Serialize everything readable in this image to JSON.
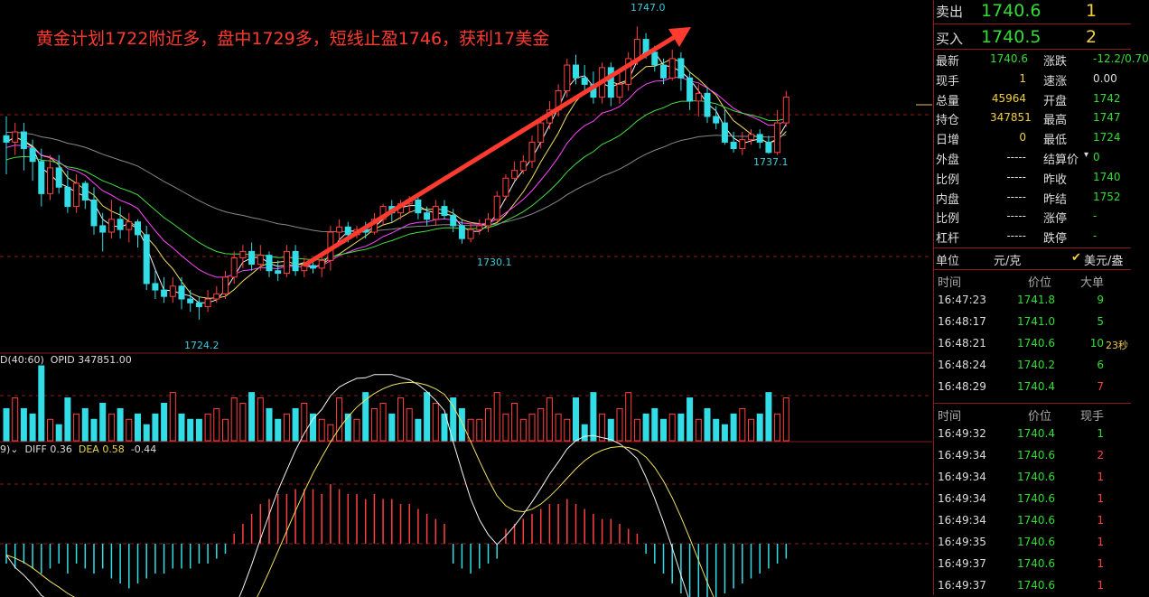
{
  "annotation": "黄金计划1722附近多，盘中1729多，短线止盈1746，获利17美金",
  "price_labels": {
    "high": "1747.0",
    "low": "1724.2",
    "mid_low": "1730.1",
    "right_low": "1737.1"
  },
  "seconds_label": "23秒",
  "volume_indicator": {
    "prefix": "D(40:60)",
    "label": "OPID 347851.00"
  },
  "macd_indicator": {
    "prefix": "9)",
    "diff": "DIFF 0.36",
    "dea": "DEA 0.58",
    "macd": "-0.44"
  },
  "quote": {
    "sell_label": "卖出",
    "sell_price": "1740.6",
    "sell_qty": "1",
    "buy_label": "买入",
    "buy_price": "1740.5",
    "buy_qty": "2",
    "stats": [
      {
        "l1": "最新",
        "v1": "1740.6",
        "l2": "涨跌",
        "v2": "-12.2/0.70"
      },
      {
        "l1": "现手",
        "v1": "1",
        "l2": "速涨",
        "v2": "0.00"
      },
      {
        "l1": "总量",
        "v1": "45964",
        "l2": "开盘",
        "v2": "1742"
      },
      {
        "l1": "持仓",
        "v1": "347851",
        "l2": "最高",
        "v2": "1747"
      },
      {
        "l1": "日增",
        "v1": "0",
        "l2": "最低",
        "v2": "1724"
      },
      {
        "l1": "外盘",
        "v1": "-----",
        "l2": "结算价",
        "v2": "0"
      },
      {
        "l1": "比例",
        "v1": "-----",
        "l2": "昨收",
        "v2": "1740"
      },
      {
        "l1": "内盘",
        "v1": "-----",
        "l2": "昨结",
        "v2": "1752"
      },
      {
        "l1": "比例",
        "v1": "-----",
        "l2": "涨停",
        "v2": "-"
      },
      {
        "l1": "杠杆",
        "v1": "-----",
        "l2": "跌停",
        "v2": "-"
      }
    ],
    "unit_label": "单位",
    "unit_value": "元/克",
    "unit_option": "美元/盎"
  },
  "big_trades": {
    "headers": [
      "时间",
      "价位",
      "大单"
    ],
    "rows": [
      {
        "time": "16:47:23",
        "price": "1741.8",
        "qty": "9"
      },
      {
        "time": "16:48:17",
        "price": "1741.0",
        "qty": "5"
      },
      {
        "time": "16:48:21",
        "price": "1740.6",
        "qty": "10"
      },
      {
        "time": "16:48:24",
        "price": "1740.2",
        "qty": "6"
      },
      {
        "time": "16:48:29",
        "price": "1740.4",
        "qty": "7"
      }
    ]
  },
  "ticks": {
    "headers": [
      "时间",
      "价位",
      "现手"
    ],
    "rows": [
      {
        "time": "16:49:32",
        "price": "1740.4",
        "qty": "1"
      },
      {
        "time": "16:49:34",
        "price": "1740.6",
        "qty": "2"
      },
      {
        "time": "16:49:34",
        "price": "1740.6",
        "qty": "1"
      },
      {
        "time": "16:49:34",
        "price": "1740.6",
        "qty": "1"
      },
      {
        "time": "16:49:34",
        "price": "1740.6",
        "qty": "1"
      },
      {
        "time": "16:49:35",
        "price": "1740.6",
        "qty": "1"
      },
      {
        "time": "16:49:37",
        "price": "1740.6",
        "qty": "1"
      },
      {
        "time": "16:49:37",
        "price": "1740.6",
        "qty": "1"
      }
    ]
  },
  "colors": {
    "up": "#ff4040",
    "down": "#33dde6",
    "arrow": "#ff3b30",
    "grid": "#8b1a1a"
  },
  "chart_data": {
    "type": "candlestick",
    "candles": [
      [
        1738.5,
        1738.0,
        1740.0,
        1735.5
      ],
      [
        1738.0,
        1738.8,
        1739.5,
        1737.0
      ],
      [
        1738.8,
        1737.5,
        1739.5,
        1735.8
      ],
      [
        1737.5,
        1736.5,
        1738.2,
        1735.0
      ],
      [
        1736.5,
        1734.0,
        1737.5,
        1733.0
      ],
      [
        1734.0,
        1736.0,
        1737.0,
        1733.5
      ],
      [
        1736.0,
        1734.5,
        1737.0,
        1734.0
      ],
      [
        1734.5,
        1733.0,
        1735.8,
        1732.5
      ],
      [
        1733.0,
        1734.8,
        1735.5,
        1732.5
      ],
      [
        1734.8,
        1733.5,
        1735.0,
        1732.8
      ],
      [
        1733.5,
        1731.5,
        1734.5,
        1730.8
      ],
      [
        1731.5,
        1731.0,
        1732.5,
        1729.5
      ],
      [
        1731.0,
        1732.0,
        1733.5,
        1730.5
      ],
      [
        1732.0,
        1731.2,
        1733.0,
        1730.5
      ],
      [
        1731.2,
        1731.8,
        1732.5,
        1730.2
      ],
      [
        1731.8,
        1730.8,
        1732.0,
        1729.8
      ],
      [
        1730.8,
        1727.0,
        1731.5,
        1726.5
      ],
      [
        1727.0,
        1726.5,
        1728.0,
        1725.8
      ],
      [
        1726.5,
        1726.0,
        1727.5,
        1725.5
      ],
      [
        1726.0,
        1726.8,
        1727.5,
        1725.5
      ],
      [
        1726.8,
        1725.8,
        1727.5,
        1725.0
      ],
      [
        1725.8,
        1725.5,
        1726.5,
        1724.8
      ],
      [
        1725.5,
        1725.2,
        1726.0,
        1724.2
      ],
      [
        1725.2,
        1725.8,
        1726.5,
        1724.8
      ],
      [
        1725.8,
        1726.2,
        1726.8,
        1725.5
      ],
      [
        1726.2,
        1727.5,
        1728.0,
        1725.8
      ],
      [
        1727.5,
        1729.0,
        1729.5,
        1727.0
      ],
      [
        1729.0,
        1729.5,
        1730.0,
        1728.2
      ],
      [
        1729.5,
        1728.5,
        1730.2,
        1728.0
      ],
      [
        1728.5,
        1729.2,
        1730.0,
        1728.0
      ],
      [
        1729.2,
        1728.0,
        1729.5,
        1727.5
      ],
      [
        1728.0,
        1727.8,
        1728.8,
        1727.2
      ],
      [
        1727.8,
        1729.5,
        1730.0,
        1727.5
      ],
      [
        1729.5,
        1728.0,
        1730.0,
        1727.6
      ],
      [
        1728.0,
        1728.4,
        1729.0,
        1727.5
      ],
      [
        1728.4,
        1728.2,
        1729.0,
        1727.8
      ],
      [
        1728.2,
        1728.8,
        1729.2,
        1727.5
      ],
      [
        1728.8,
        1731.0,
        1731.5,
        1728.0
      ],
      [
        1731.0,
        1731.4,
        1732.0,
        1730.0
      ],
      [
        1731.4,
        1730.8,
        1731.8,
        1730.2
      ],
      [
        1730.8,
        1731.2,
        1731.5,
        1730.5
      ],
      [
        1731.2,
        1731.0,
        1731.8,
        1730.5
      ],
      [
        1731.0,
        1732.0,
        1732.5,
        1730.8
      ],
      [
        1732.0,
        1733.0,
        1733.2,
        1731.5
      ],
      [
        1733.0,
        1732.5,
        1733.5,
        1731.8
      ],
      [
        1732.5,
        1733.2,
        1733.5,
        1732.0
      ],
      [
        1733.2,
        1733.5,
        1733.8,
        1732.5
      ],
      [
        1733.5,
        1732.5,
        1734.0,
        1732.0
      ],
      [
        1732.5,
        1732.0,
        1733.0,
        1731.5
      ],
      [
        1732.0,
        1733.0,
        1733.5,
        1731.5
      ],
      [
        1733.0,
        1732.3,
        1733.5,
        1732.0
      ],
      [
        1732.3,
        1731.5,
        1732.8,
        1731.0
      ],
      [
        1731.5,
        1730.5,
        1732.0,
        1730.1
      ],
      [
        1730.5,
        1731.2,
        1731.8,
        1730.2
      ],
      [
        1731.2,
        1731.5,
        1732.0,
        1730.8
      ],
      [
        1731.5,
        1732.0,
        1732.5,
        1731.0
      ],
      [
        1732.0,
        1733.8,
        1734.2,
        1731.8
      ],
      [
        1733.8,
        1735.2,
        1735.5,
        1733.5
      ],
      [
        1735.2,
        1735.8,
        1736.5,
        1735.0
      ],
      [
        1735.8,
        1736.5,
        1737.0,
        1735.5
      ],
      [
        1736.5,
        1738.0,
        1738.5,
        1736.0
      ],
      [
        1738.0,
        1739.5,
        1740.0,
        1737.5
      ],
      [
        1739.5,
        1740.5,
        1741.2,
        1739.0
      ],
      [
        1740.5,
        1742.0,
        1742.5,
        1740.0
      ],
      [
        1742.0,
        1744.0,
        1744.5,
        1741.5
      ],
      [
        1744.0,
        1743.0,
        1744.8,
        1742.5
      ],
      [
        1743.0,
        1742.5,
        1744.0,
        1742.0
      ],
      [
        1742.5,
        1741.5,
        1743.5,
        1741.0
      ],
      [
        1741.5,
        1743.8,
        1744.2,
        1741.0
      ],
      [
        1743.8,
        1741.5,
        1744.2,
        1740.8
      ],
      [
        1741.5,
        1742.5,
        1743.5,
        1741.0
      ],
      [
        1742.5,
        1744.5,
        1745.0,
        1742.0
      ],
      [
        1744.5,
        1746.0,
        1747.0,
        1744.0
      ],
      [
        1746.0,
        1745.0,
        1746.5,
        1744.5
      ],
      [
        1745.0,
        1744.0,
        1745.5,
        1743.5
      ],
      [
        1744.0,
        1743.0,
        1744.5,
        1742.5
      ],
      [
        1743.0,
        1744.5,
        1745.2,
        1742.8
      ],
      [
        1744.5,
        1743.0,
        1745.0,
        1742.0
      ],
      [
        1743.0,
        1741.2,
        1743.5,
        1740.5
      ],
      [
        1741.2,
        1741.8,
        1742.5,
        1740.0
      ],
      [
        1741.8,
        1740.0,
        1742.2,
        1739.5
      ],
      [
        1740.0,
        1739.5,
        1740.8,
        1739.0
      ],
      [
        1739.5,
        1738.0,
        1740.5,
        1737.8
      ],
      [
        1738.0,
        1737.5,
        1738.8,
        1737.2
      ],
      [
        1737.5,
        1738.2,
        1738.8,
        1737.0
      ],
      [
        1738.2,
        1738.6,
        1739.0,
        1737.8
      ],
      [
        1738.6,
        1738.0,
        1739.0,
        1737.5
      ],
      [
        1738.0,
        1737.2,
        1738.5,
        1737.1
      ],
      [
        1737.2,
        1739.5,
        1740.5,
        1737.0
      ],
      [
        1739.5,
        1741.5,
        1742.0,
        1739.2
      ]
    ],
    "volumes": [
      6,
      8,
      6,
      5,
      14,
      4,
      3,
      8,
      5,
      6,
      4,
      7,
      5,
      6,
      4,
      5,
      3,
      5,
      7,
      9,
      5,
      4,
      4,
      5,
      6,
      4,
      8,
      7,
      9,
      8,
      6,
      4,
      5,
      6,
      7,
      5,
      4,
      3,
      8,
      5,
      4,
      9,
      6,
      7,
      5,
      8,
      6,
      4,
      9,
      7,
      5,
      8,
      6,
      4,
      4,
      6,
      9,
      5,
      7,
      4,
      5,
      6,
      8,
      5,
      4,
      8,
      3,
      9,
      5,
      4,
      6,
      9,
      4,
      5,
      6,
      4,
      5,
      5,
      8,
      4,
      6,
      4,
      3,
      5,
      6,
      4,
      5,
      9,
      5,
      8
    ],
    "macd_hist": [
      -4,
      -5,
      -4,
      -5,
      -6,
      -5,
      -4,
      -6,
      -4,
      -5,
      -6,
      -5,
      -7,
      -8,
      -9,
      -8,
      -7,
      -6,
      -6,
      -5,
      -5,
      -5,
      -4,
      -4,
      -3,
      -2,
      2,
      4,
      6,
      8,
      9,
      10,
      10,
      11,
      11,
      11,
      10,
      12,
      11,
      10,
      10,
      9,
      10,
      9,
      9,
      8,
      8,
      7,
      6,
      5,
      4,
      -4,
      -5,
      -6,
      -5,
      -4,
      -3,
      3,
      4,
      5,
      6,
      7,
      8,
      8,
      9,
      8,
      7,
      6,
      5,
      5,
      4,
      3,
      2,
      -2,
      -4,
      -6,
      -8,
      -10,
      -11,
      -12,
      -12,
      -11,
      -10,
      -9,
      -8,
      -7,
      -6,
      -5,
      -4,
      -3
    ]
  }
}
